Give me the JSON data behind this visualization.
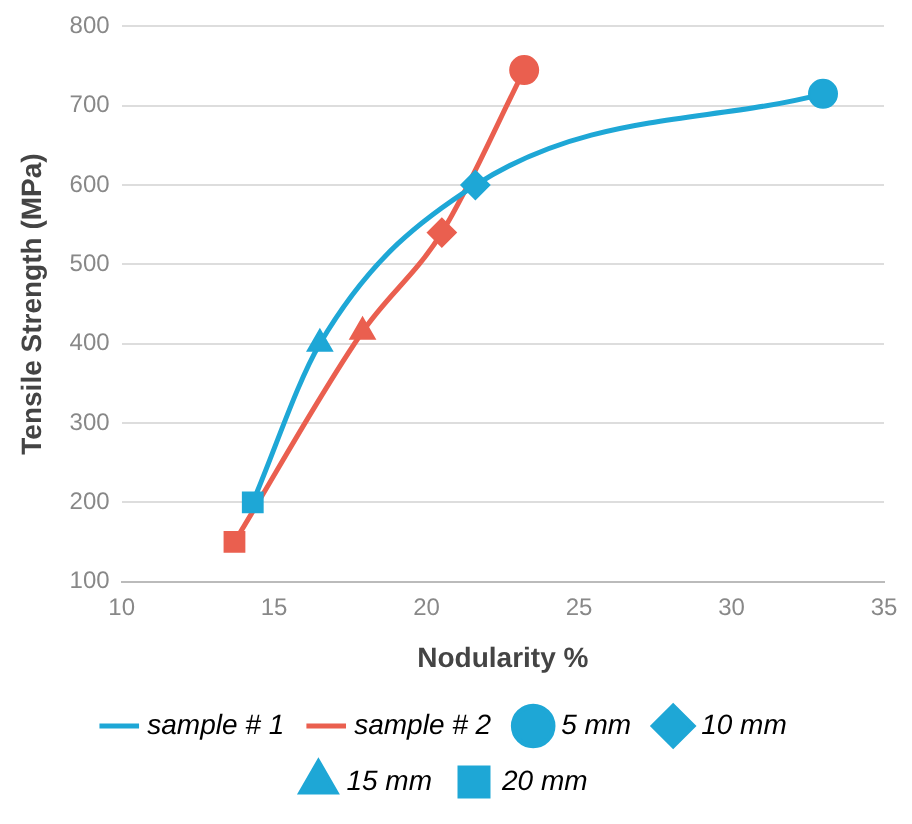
{
  "chart_data": {
    "type": "scatter",
    "xlabel": "Nodularity %",
    "ylabel": "Tensile Strength (MPa)",
    "xlim": [
      10,
      35
    ],
    "ylim": [
      100,
      800
    ],
    "xticks": [
      10,
      15,
      20,
      25,
      30,
      35
    ],
    "yticks": [
      100,
      200,
      300,
      400,
      500,
      600,
      700,
      800
    ],
    "grid": "y",
    "legend": "bottom",
    "series": [
      {
        "name": "sample # 1",
        "type": "line",
        "marker": "none",
        "line_style": "solid",
        "color": "#1ea7d6",
        "x": [
          14.3,
          16.5,
          21.6,
          33
        ],
        "values": [
          200,
          400,
          600,
          715
        ]
      },
      {
        "name": "sample # 2",
        "type": "line",
        "marker": "none",
        "line_style": "solid",
        "color": "#ea5f4f",
        "x": [
          13.7,
          17.9,
          20.5,
          23.2
        ],
        "values": [
          150,
          415,
          540,
          745
        ]
      },
      {
        "name": "5 mm",
        "type": "scatter",
        "marker": "circle",
        "color": "#1ea7d6",
        "colors": [
          "#1ea7d6",
          "#ea5f4f"
        ],
        "x": [
          33,
          23.2
        ],
        "values": [
          715,
          745
        ]
      },
      {
        "name": "10 mm",
        "type": "scatter",
        "marker": "diamond",
        "color": "#1ea7d6",
        "colors": [
          "#1ea7d6",
          "#ea5f4f"
        ],
        "x": [
          21.6,
          20.5
        ],
        "values": [
          600,
          540
        ]
      },
      {
        "name": "15 mm",
        "type": "scatter",
        "marker": "triangle",
        "color": "#1ea7d6",
        "colors": [
          "#1ea7d6",
          "#ea5f4f"
        ],
        "x": [
          16.5,
          17.9
        ],
        "values": [
          400,
          415
        ]
      },
      {
        "name": "20 mm",
        "type": "scatter",
        "marker": "square",
        "color": "#1ea7d6",
        "colors": [
          "#1ea7d6",
          "#ea5f4f"
        ],
        "x": [
          14.3,
          13.7
        ],
        "values": [
          200,
          150
        ]
      }
    ]
  }
}
